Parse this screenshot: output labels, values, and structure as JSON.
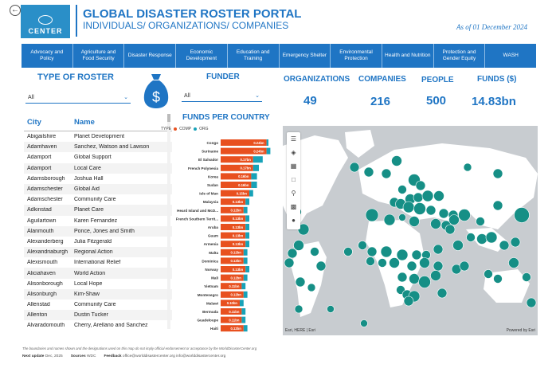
{
  "header": {
    "title": "GLOBAL DISASTER ROSTER PORTAL",
    "subtitle": "INDIVIDUALS/ ORGANIZATIONS/ COMPANIES",
    "as_of": "As of 01 December 2024",
    "logo_text": "CENTER"
  },
  "categories": [
    "Advocacy and Policy",
    "Agriculture and Food Security",
    "Disaster Response",
    "Economic Development",
    "Education and Training",
    "Emergency Shelter",
    "Environmental Protection",
    "Health and Nutrition",
    "Protection and Gender Equity",
    "WASH"
  ],
  "filters": {
    "roster_label": "TYPE OF ROSTER",
    "roster_value": "All",
    "funder_label": "FUNDER",
    "funder_value": "All"
  },
  "kpis": {
    "organizations_label": "ORGANIZATIONS",
    "organizations_value": "49",
    "companies_label": "COMPANIES",
    "companies_value": "216",
    "people_label": "PEOPLE",
    "people_value": "500",
    "funds_label": "FUNDS ($)",
    "funds_value": "14.83bn"
  },
  "table": {
    "headers": [
      "City",
      "Name"
    ],
    "rows": [
      [
        "Abigailshire",
        "Planet Development"
      ],
      [
        "Adamhaven",
        "Sanchez, Watson and Lawson"
      ],
      [
        "Adamport",
        "Global Support"
      ],
      [
        "Adamport",
        "Local Care"
      ],
      [
        "Adamsborough",
        "Joshua Hall"
      ],
      [
        "Adamschester",
        "Global Aid"
      ],
      [
        "Adamschester",
        "Community Care"
      ],
      [
        "Adkinstad",
        "Planet Care"
      ],
      [
        "Aguilartown",
        "Karen Fernandez"
      ],
      [
        "Alanmouth",
        "Ponce, Jones and Smith"
      ],
      [
        "Alexanderberg",
        "Julia Fitzgerald"
      ],
      [
        "Alexandriaburgh",
        "Regional Action"
      ],
      [
        "Alexismouth",
        "International Relief"
      ],
      [
        "Aliciahaven",
        "World Action"
      ],
      [
        "Alisonborough",
        "Local Hope"
      ],
      [
        "Alisonburgh",
        "Kim-Shaw"
      ],
      [
        "Allenstad",
        "Community Care"
      ],
      [
        "Allenton",
        "Dustin Tucker"
      ],
      [
        "Alvaradomouth",
        "Cherry, Arellano and Sanchez"
      ]
    ]
  },
  "chart_data": {
    "type": "bar",
    "title": "FUNDS PER COUNTRY",
    "legend_title": "TYPE",
    "categories": [
      "Congo",
      "Suriname",
      "El Salvador",
      "French Polynesia",
      "Korea",
      "Sudan",
      "Isle of Man",
      "Malaysia",
      "Heard Island and McD...",
      "French Southern Territ...",
      "Aruba",
      "Guam",
      "Armenia",
      "Malta",
      "Dominica",
      "Norway",
      "Mali",
      "Vietnam",
      "Montenegro",
      "Malawi",
      "Bermuda",
      "Guadeloupe",
      "Haiti"
    ],
    "labels": [
      "0.24bn",
      "0.24bn",
      "0.17bn",
      "0.17bn",
      "0.16bn",
      "0.16bn",
      "0.15bn",
      "0.13bn",
      "0.12bn",
      "0.13bn",
      "0.13bn",
      "0.13bn",
      "0.13bn",
      "0.12bn",
      "0.12bn",
      "0.13bn",
      "0.12bn",
      "0.11bn",
      "0.12bn",
      "0.10bn",
      "0.11bn",
      "0.11bn",
      "0.12bn"
    ],
    "series": [
      {
        "name": "COMP",
        "color": "#e8501f",
        "values": [
          0.24,
          0.24,
          0.17,
          0.17,
          0.16,
          0.16,
          0.15,
          0.13,
          0.12,
          0.13,
          0.13,
          0.13,
          0.13,
          0.12,
          0.12,
          0.13,
          0.12,
          0.11,
          0.12,
          0.1,
          0.11,
          0.11,
          0.12
        ]
      },
      {
        "name": "ORG",
        "color": "#17a2b8",
        "values": [
          0.01,
          0.02,
          0.05,
          0.03,
          0.03,
          0.03,
          0.02,
          0.02,
          0.02,
          0.02,
          0.02,
          0.02,
          0.02,
          0.02,
          0.02,
          0.02,
          0.02,
          0.02,
          0.02,
          0.02,
          0.02,
          0.02,
          0.02
        ]
      }
    ]
  },
  "map": {
    "attribution": "Esri, HERE | Esri",
    "powered_by": "Powered by Esri",
    "marker_color": "#168f86"
  },
  "footer": {
    "disclaimer": "The boundaries and names shown and the designations used on this map do not imply official endorsement or acceptance by the WorldDisasterCenter.org",
    "next_update_label": "Next update",
    "next_update_value": "Dec, 2025",
    "sources_label": "Sources",
    "sources_value": "WDC",
    "feedback_label": "Feedback",
    "feedback_value": "office@worlddisastercenter.org   info@worlddisastercenter.org"
  }
}
